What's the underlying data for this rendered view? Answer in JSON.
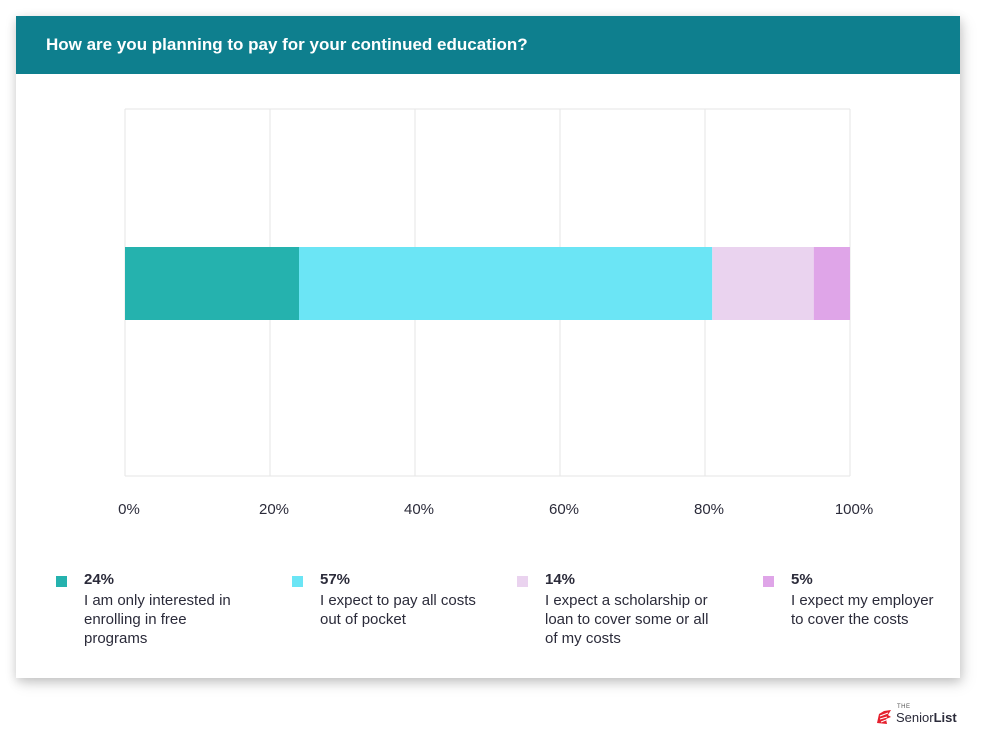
{
  "chart_data": {
    "type": "bar",
    "orientation": "horizontal",
    "stacked": true,
    "title": "How are you planning to pay for your continued education?",
    "xlim": [
      0,
      100
    ],
    "x_ticks": [
      "0%",
      "20%",
      "40%",
      "60%",
      "80%",
      "100%"
    ],
    "grid": true,
    "legend_position": "bottom",
    "series": [
      {
        "value_label": "24%",
        "name": "I am only interested in enrolling in free programs",
        "value": 24,
        "color": "#25b2ae"
      },
      {
        "value_label": "57%",
        "name": "I expect to pay all costs out of pocket",
        "value": 57,
        "color": "#6be5f5"
      },
      {
        "value_label": "14%",
        "name": "I expect a scholarship or loan to cover some or all of my costs",
        "value": 14,
        "color": "#ead3ef"
      },
      {
        "value_label": "5%",
        "name": "I expect my employer to cover the costs",
        "value": 5,
        "color": "#dfa5e8"
      }
    ]
  },
  "brand": {
    "prefix": "THE",
    "name_light": "Senior",
    "name_bold": "List",
    "logo_color": "#e5202e"
  }
}
